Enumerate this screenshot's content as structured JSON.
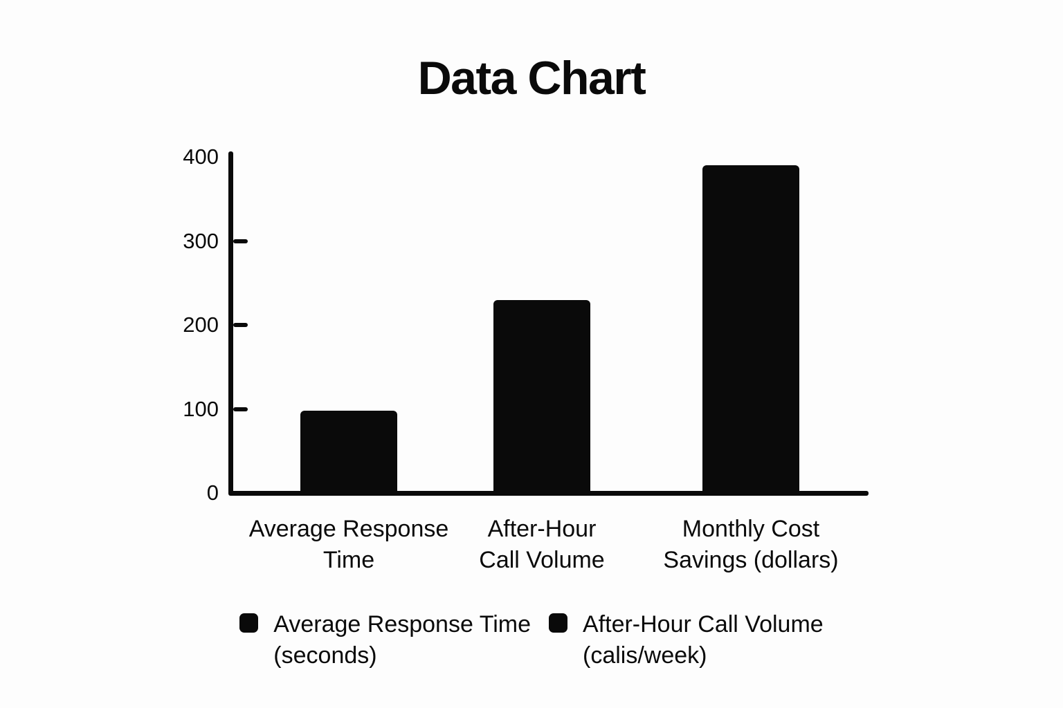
{
  "page": {
    "background": "#fdfdfd"
  },
  "chart_data": {
    "type": "bar",
    "title": "Data Chart",
    "categories": [
      "Average Response Time",
      "After-Hour Call Volume",
      "Monthly Cost Savings (dollars)"
    ],
    "category_lines": [
      [
        "Average Response",
        "Time"
      ],
      [
        "After-Hour",
        "Call Volume"
      ],
      [
        "Monthly Cost",
        "Savings (dollars)"
      ]
    ],
    "values": [
      98,
      230,
      390
    ],
    "xlabel": "",
    "ylabel": "",
    "ylim": [
      0,
      400
    ],
    "yticks": [
      0,
      100,
      200,
      300,
      400
    ],
    "grid": false,
    "bar_color": "#0a0a0a",
    "axis_color": "#0a0a0a",
    "text_color": "#0a0a0a",
    "legend_position": "bottom",
    "legend": [
      {
        "lines": [
          "Average Response Time",
          "(seconds)"
        ],
        "label": "Average Response Time (seconds)",
        "color": "#0a0a0a"
      },
      {
        "lines": [
          "After-Hour Call Volume",
          "(calis/week)"
        ],
        "label": "After-Hour Call Volume (calis/week)",
        "color": "#0a0a0a"
      }
    ]
  }
}
